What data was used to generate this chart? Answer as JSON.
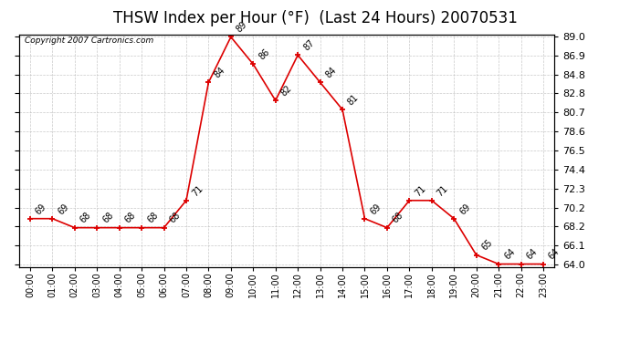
{
  "title": "THSW Index per Hour (°F)  (Last 24 Hours) 20070531",
  "copyright": "Copyright 2007 Cartronics.com",
  "hours": [
    "00:00",
    "01:00",
    "02:00",
    "03:00",
    "04:00",
    "05:00",
    "06:00",
    "07:00",
    "08:00",
    "09:00",
    "10:00",
    "11:00",
    "12:00",
    "13:00",
    "14:00",
    "15:00",
    "16:00",
    "17:00",
    "18:00",
    "19:00",
    "20:00",
    "21:00",
    "22:00",
    "23:00"
  ],
  "values": [
    69,
    69,
    68,
    68,
    68,
    68,
    68,
    71,
    84,
    89,
    86,
    82,
    87,
    84,
    81,
    69,
    68,
    71,
    71,
    69,
    65,
    64,
    64,
    64
  ],
  "ylim_min": 63.7,
  "ylim_max": 89.3,
  "yticks": [
    64.0,
    66.1,
    68.2,
    70.2,
    72.3,
    74.4,
    76.5,
    78.6,
    80.7,
    82.8,
    84.8,
    86.9,
    89.0
  ],
  "line_color": "#dd0000",
  "bg_color": "#ffffff",
  "grid_color": "#bbbbbb",
  "title_fontsize": 12,
  "tick_fontsize": 7,
  "annotation_fontsize": 7,
  "copyright_fontsize": 6.5
}
